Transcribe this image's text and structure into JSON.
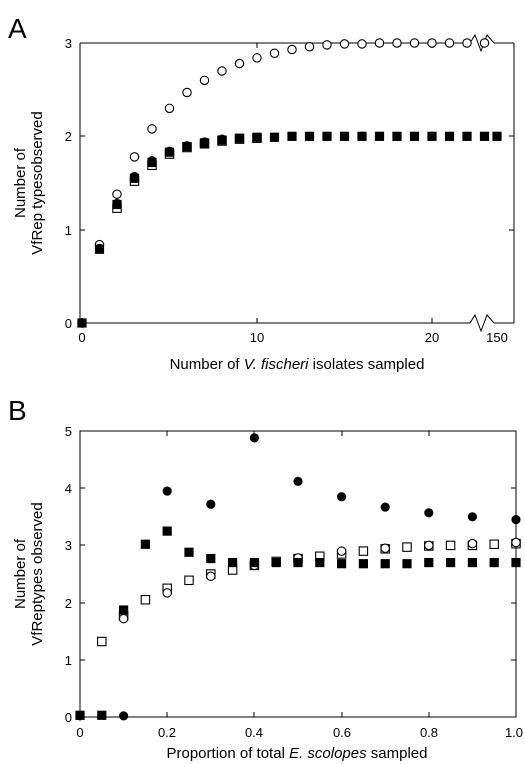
{
  "chart_data": [
    {
      "panel_label": "A",
      "type": "scatter",
      "xlabel_parts": [
        "Number of ",
        "V. fischeri",
        " isolates sampled"
      ],
      "ylabel_lines": [
        "Number of",
        "VfRep typesobserved"
      ],
      "x_ticks": [
        "0",
        "10",
        "20",
        "150"
      ],
      "y_ticks": [
        "0",
        "1",
        "2",
        "3"
      ],
      "xlim": [
        0,
        24.5
      ],
      "ylim": [
        0,
        3
      ],
      "axis_break": true,
      "break_tick_label": "150",
      "series": [
        {
          "marker": "open-circle",
          "x": [
            0,
            1,
            2,
            3,
            4,
            5,
            6,
            7,
            8,
            9,
            10,
            11,
            12,
            13,
            14,
            15,
            16,
            17,
            18,
            19,
            20,
            21,
            22,
            23
          ],
          "y": [
            0,
            0.84,
            1.38,
            1.78,
            2.08,
            2.3,
            2.47,
            2.6,
            2.7,
            2.78,
            2.84,
            2.89,
            2.93,
            2.96,
            2.98,
            2.99,
            2.99,
            3.0,
            3.0,
            3.0,
            3.0,
            3.0,
            3.0,
            3.0
          ]
        },
        {
          "marker": "filled-circle",
          "x": [
            0,
            1,
            2,
            3,
            4,
            5,
            6,
            7,
            8,
            9,
            10,
            11,
            12,
            13,
            14,
            15,
            16,
            17,
            18,
            19,
            20,
            21,
            22,
            23,
            150
          ],
          "y": [
            0,
            0.8,
            1.28,
            1.57,
            1.74,
            1.84,
            1.9,
            1.94,
            1.97,
            1.98,
            1.99,
            1.99,
            2.0,
            2.0,
            2.0,
            2.0,
            2.0,
            2.0,
            2.0,
            2.0,
            2.0,
            2.0,
            2.0,
            2.0,
            2.0
          ]
        },
        {
          "marker": "filled-square",
          "x": [
            0,
            1,
            2,
            3,
            4,
            5,
            6,
            7,
            8,
            9,
            10,
            11,
            12,
            13,
            14,
            15,
            16,
            17,
            18,
            19,
            20,
            21,
            22,
            23,
            150
          ],
          "y": [
            0,
            0.79,
            1.27,
            1.55,
            1.72,
            1.83,
            1.89,
            1.93,
            1.96,
            1.98,
            1.99,
            1.99,
            2.0,
            2.0,
            2.0,
            2.0,
            2.0,
            2.0,
            2.0,
            2.0,
            2.0,
            2.0,
            2.0,
            2.0,
            2.0
          ]
        },
        {
          "marker": "open-square",
          "x": [
            2,
            3,
            4,
            5,
            6,
            7,
            8,
            9,
            10
          ],
          "y": [
            1.23,
            1.52,
            1.69,
            1.81,
            1.88,
            1.92,
            1.95,
            1.97,
            1.98
          ]
        }
      ]
    },
    {
      "panel_label": "B",
      "type": "scatter",
      "xlabel_parts": [
        "Proportion of total ",
        "E. scolopes",
        " sampled"
      ],
      "ylabel_lines": [
        "Number of",
        "VfReptypes observed"
      ],
      "x_ticks": [
        "0",
        "0.2",
        "0.4",
        "0.6",
        "0.8",
        "1.0"
      ],
      "y_ticks": [
        "0",
        "1",
        "2",
        "3",
        "4",
        "5"
      ],
      "xlim": [
        0,
        1.0
      ],
      "ylim": [
        0,
        5
      ],
      "series": [
        {
          "marker": "filled-circle",
          "x": [
            0,
            0.1,
            0.2,
            0.3,
            0.4,
            0.5,
            0.6,
            0.7,
            0.8,
            0.9,
            1.0
          ],
          "y": [
            0.02,
            0.02,
            3.95,
            3.72,
            4.88,
            4.12,
            3.85,
            3.67,
            3.57,
            3.5,
            3.45
          ]
        },
        {
          "marker": "filled-square",
          "x": [
            0,
            0.05,
            0.1,
            0.15,
            0.2,
            0.25,
            0.3,
            0.35,
            0.4,
            0.45,
            0.5,
            0.55,
            0.6,
            0.65,
            0.7,
            0.75,
            0.8,
            0.85,
            0.9,
            0.95,
            1.0
          ],
          "y": [
            0.03,
            0.03,
            1.87,
            3.02,
            3.25,
            2.88,
            2.77,
            2.7,
            2.7,
            2.7,
            2.7,
            2.7,
            2.68,
            2.68,
            2.68,
            2.68,
            2.7,
            2.7,
            2.7,
            2.7,
            2.7
          ]
        },
        {
          "marker": "open-circle",
          "x": [
            0.1,
            0.2,
            0.3,
            0.4,
            0.5,
            0.6,
            0.7,
            0.8,
            0.9,
            1.0
          ],
          "y": [
            1.72,
            2.17,
            2.46,
            2.65,
            2.78,
            2.9,
            2.95,
            3.0,
            3.03,
            3.05
          ]
        },
        {
          "marker": "open-square",
          "x": [
            0.05,
            0.1,
            0.15,
            0.2,
            0.25,
            0.3,
            0.35,
            0.4,
            0.45,
            0.5,
            0.55,
            0.6,
            0.65,
            0.7,
            0.75,
            0.8,
            0.85,
            0.9,
            0.95,
            1.0
          ],
          "y": [
            1.32,
            1.77,
            2.05,
            2.25,
            2.39,
            2.5,
            2.57,
            2.65,
            2.72,
            2.77,
            2.81,
            2.85,
            2.9,
            2.94,
            2.97,
            2.99,
            3.0,
            3.0,
            3.02,
            3.03
          ]
        }
      ]
    }
  ]
}
